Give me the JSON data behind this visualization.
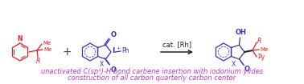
{
  "fig_width": 3.78,
  "fig_height": 1.05,
  "dpi": 100,
  "bg_color": "#ffffff",
  "red_color": "#dd2222",
  "blue_color": "#3333bb",
  "magenta_color": "#cc33cc",
  "black_color": "#222222",
  "line1": "unactivated C(sp³)-H bond carbene insertion with iodonium ylides",
  "line2": "construction of all carbon quarterly carbon center",
  "text_fontsize": 6.0,
  "cat_label": "cat. [Rh]",
  "cat_fontsize": 6.0,
  "arrow_color": "#222222"
}
